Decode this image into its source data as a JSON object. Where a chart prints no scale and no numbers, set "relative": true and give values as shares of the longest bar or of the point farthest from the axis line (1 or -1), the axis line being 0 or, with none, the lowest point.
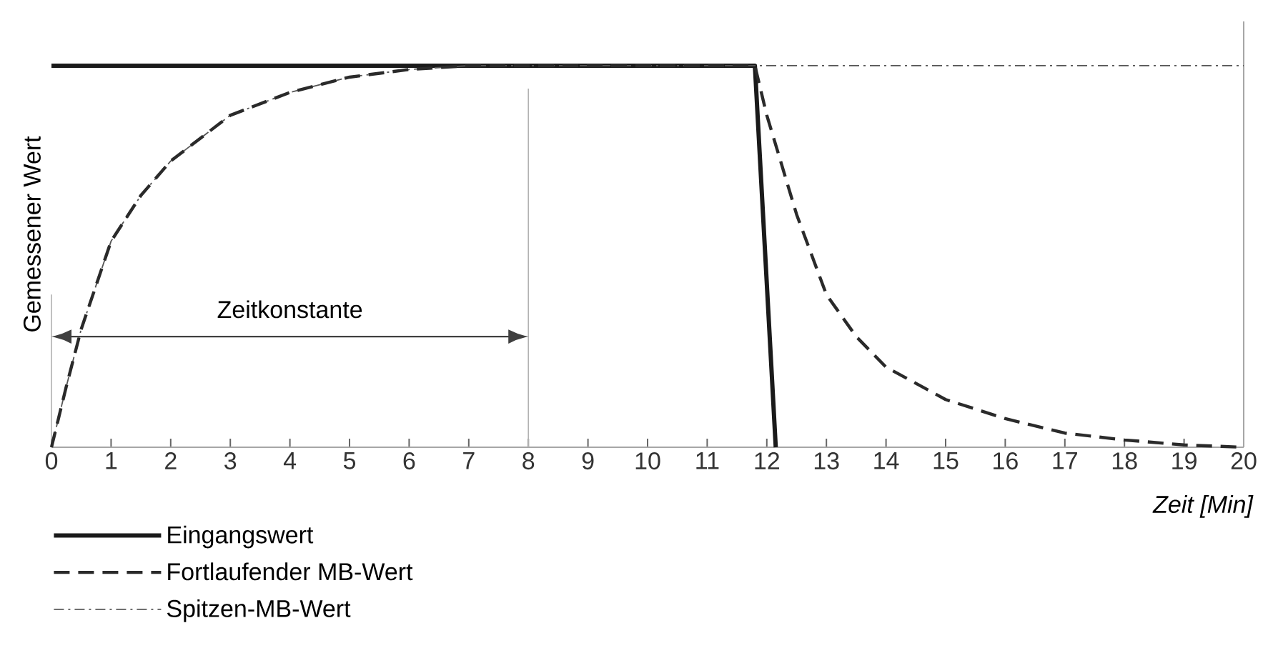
{
  "chart_data": {
    "type": "line",
    "relative": true,
    "xlabel": "Zeit [Min]",
    "ylabel": "Gemessener Wert",
    "xlim": [
      0,
      20
    ],
    "xticks": [
      0,
      1,
      2,
      3,
      4,
      5,
      6,
      7,
      8,
      9,
      10,
      11,
      12,
      13,
      14,
      15,
      16,
      17,
      18,
      19,
      20
    ],
    "tick_labels": "x",
    "grid": false,
    "legend": "bottom left",
    "marker": "none",
    "annotations": [
      "Zeitkonstante"
    ],
    "ref_lines": [
      {
        "axis": "x",
        "value": 8
      }
    ],
    "series": [
      {
        "name": "Eingangswert",
        "color": "#1a1a1a",
        "line_style": "solid",
        "x": [
          0,
          11.8,
          12.15
        ],
        "values": [
          1,
          1,
          0
        ]
      },
      {
        "name": "Fortlaufender MB-Wert",
        "color": "#2a2a2a",
        "line_style": "dashed",
        "x": [
          0,
          0.25,
          0.5,
          1,
          1.5,
          2,
          3,
          4,
          5,
          6,
          7,
          11.8,
          12,
          12.5,
          13,
          13.5,
          14,
          15,
          16,
          17,
          18,
          19,
          20
        ],
        "values": [
          0,
          0.16,
          0.31,
          0.54,
          0.66,
          0.75,
          0.87,
          0.93,
          0.97,
          0.99,
          1,
          1,
          0.87,
          0.61,
          0.4,
          0.29,
          0.21,
          0.125,
          0.075,
          0.037,
          0.019,
          0.006,
          0
        ]
      },
      {
        "name": "Spitzen-MB-Wert",
        "color": "#555555",
        "line_style": "dashdot",
        "x": [
          0,
          0.25,
          0.5,
          1,
          1.5,
          2,
          3,
          4,
          5,
          6,
          7,
          20
        ],
        "values": [
          0,
          0.16,
          0.31,
          0.54,
          0.66,
          0.75,
          0.87,
          0.93,
          0.97,
          0.99,
          1,
          1
        ]
      }
    ]
  }
}
